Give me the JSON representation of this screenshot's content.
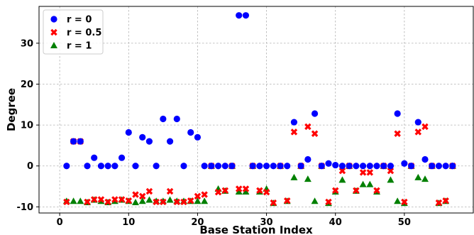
{
  "chart_data": {
    "type": "scatter",
    "xlabel": "Base Station Index",
    "ylabel": "Degree",
    "xlim": [
      -3,
      60
    ],
    "ylim": [
      -11.5,
      39
    ],
    "xticks": [
      0,
      10,
      20,
      30,
      40,
      50
    ],
    "yticks": [
      -10,
      0,
      10,
      20,
      30
    ],
    "grid": true,
    "legend_position": "top-left",
    "series": [
      {
        "name": "r = 0",
        "marker": "circle",
        "color": "#0000ff",
        "x": [
          1,
          2,
          3,
          4,
          5,
          6,
          7,
          8,
          9,
          10,
          11,
          12,
          13,
          14,
          15,
          16,
          17,
          18,
          19,
          20,
          21,
          22,
          23,
          24,
          25,
          26,
          27,
          28,
          29,
          30,
          31,
          32,
          33,
          34,
          35,
          36,
          37,
          38,
          39,
          40,
          41,
          42,
          43,
          44,
          45,
          46,
          47,
          48,
          49,
          50,
          51,
          52,
          53,
          54,
          55,
          56,
          57
        ],
        "y": [
          0,
          6,
          6,
          0,
          2,
          0,
          0,
          0,
          2,
          8.2,
          0,
          7,
          6,
          0,
          11.5,
          6,
          11.5,
          0,
          8.2,
          7,
          0,
          0,
          0,
          0,
          0,
          36.8,
          36.8,
          0,
          0,
          0,
          0,
          0,
          0,
          10.7,
          0,
          1.6,
          12.8,
          0,
          0.6,
          0.2,
          0,
          0,
          0,
          0,
          0,
          0,
          0,
          0,
          12.8,
          0.6,
          0,
          10.7,
          1.6,
          0,
          0,
          0,
          0
        ]
      },
      {
        "name": "r = 0.5",
        "marker": "x",
        "color": "#ff0000",
        "x": [
          1,
          2,
          3,
          4,
          5,
          6,
          7,
          8,
          9,
          10,
          11,
          12,
          13,
          14,
          15,
          16,
          17,
          18,
          19,
          20,
          21,
          22,
          23,
          24,
          25,
          26,
          27,
          28,
          29,
          30,
          31,
          32,
          33,
          34,
          35,
          36,
          37,
          38,
          39,
          40,
          41,
          42,
          43,
          44,
          45,
          46,
          47,
          48,
          49,
          50,
          51,
          52,
          53,
          54,
          55,
          56,
          57
        ],
        "y": [
          -8.8,
          6,
          6,
          -8.8,
          -8.2,
          -8.2,
          -8.8,
          -8.2,
          -8.2,
          -8.5,
          -7,
          -7.4,
          -6.2,
          -8.8,
          -8.8,
          -6.2,
          -8.8,
          -8.8,
          -8.5,
          -7.4,
          -7,
          0,
          -6.4,
          -6,
          0,
          -5.6,
          -5.6,
          0,
          -6,
          -6.4,
          -9,
          0,
          -8.5,
          8.3,
          0,
          9.6,
          7.9,
          0,
          -8.8,
          -6,
          -1.2,
          0,
          -6,
          -1.6,
          -1.6,
          -6,
          0,
          -1.2,
          7.9,
          -8.8,
          0,
          8.3,
          9.6,
          0,
          -9,
          -8.5,
          0
        ]
      },
      {
        "name": "r = 1",
        "marker": "triangle",
        "color": "#008000",
        "x": [
          1,
          2,
          3,
          4,
          5,
          6,
          7,
          8,
          9,
          10,
          11,
          12,
          13,
          14,
          15,
          16,
          17,
          18,
          19,
          20,
          21,
          22,
          23,
          24,
          25,
          26,
          27,
          28,
          29,
          30,
          31,
          32,
          33,
          34,
          35,
          36,
          37,
          38,
          39,
          40,
          41,
          42,
          43,
          44,
          45,
          46,
          47,
          48,
          49,
          50,
          51,
          52,
          53,
          54,
          55,
          56,
          57
        ],
        "y": [
          -8.6,
          -8.6,
          -8.6,
          -8.9,
          -8.3,
          -8.6,
          -8.9,
          -8.6,
          -8.3,
          -8.6,
          -8.9,
          -8.6,
          -8.3,
          -8.6,
          -8.6,
          -8.3,
          -8.6,
          -8.6,
          -8.6,
          -8.6,
          -8.6,
          0,
          -5.6,
          -6.1,
          0,
          -6.3,
          -6.3,
          0,
          -6.3,
          -5.6,
          -9.1,
          0,
          -8.6,
          -2.8,
          0,
          -3.2,
          -8.6,
          0,
          -9.1,
          -6.3,
          -3.4,
          0,
          -6.1,
          -4.5,
          -4.5,
          -6.3,
          0,
          -3.4,
          -8.6,
          -9.1,
          0,
          -2.8,
          -3.2,
          0,
          -9.1,
          -8.6,
          0
        ]
      }
    ]
  }
}
